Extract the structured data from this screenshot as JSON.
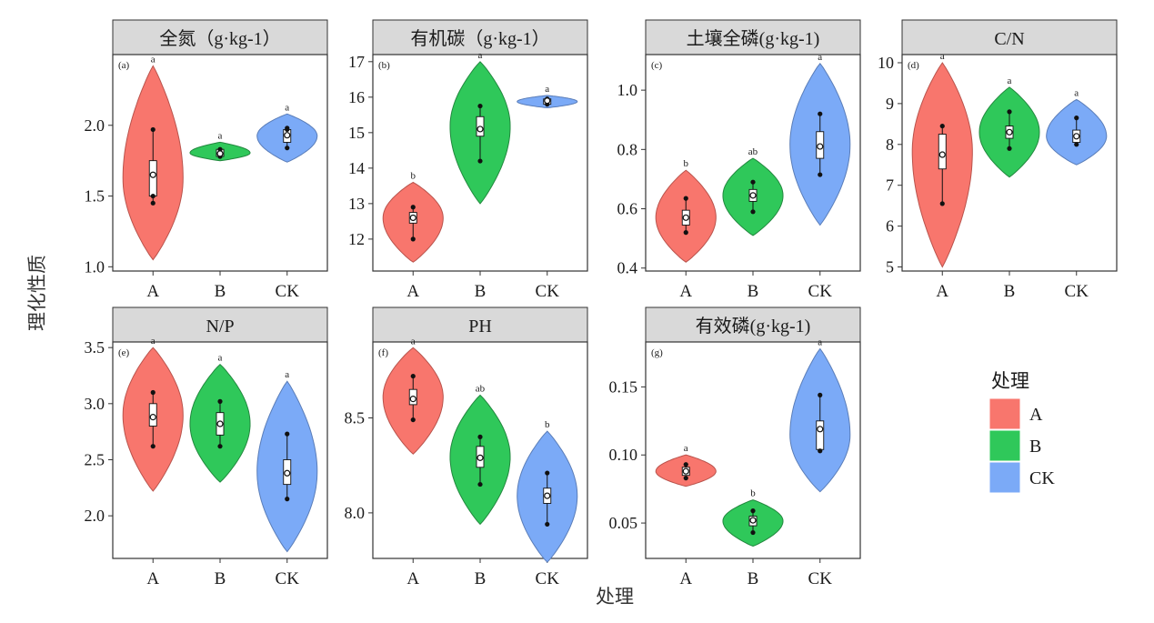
{
  "xlabel": "处理",
  "ylabel": "理化性质",
  "legend": {
    "title": "处理",
    "placement": "right",
    "items": [
      {
        "label": "A",
        "color": "#F8766D"
      },
      {
        "label": "B",
        "color": "#2FC85A"
      },
      {
        "label": "CK",
        "color": "#7BAAF7"
      }
    ]
  },
  "chart_data": [
    {
      "type": "violin",
      "panel_tag": "(a)",
      "strip_title": "全氮（g·kg-1）",
      "categories": [
        "A",
        "B",
        "CK"
      ],
      "yticks": [
        1.0,
        1.5,
        2.0
      ],
      "ylim": [
        0.97,
        2.5
      ],
      "series": [
        {
          "name": "A",
          "median": 1.65,
          "q1": 1.5,
          "q3": 1.75,
          "whisker_low": 1.45,
          "whisker_high": 1.97,
          "points": [
            1.45,
            1.5,
            1.97
          ],
          "vmin": 1.05,
          "vmax": 2.42,
          "letter": "a"
        },
        {
          "name": "B",
          "median": 1.8,
          "q1": 1.78,
          "q3": 1.83,
          "whisker_low": 1.77,
          "whisker_high": 1.84,
          "points": [
            1.78,
            1.83
          ],
          "vmin": 1.75,
          "vmax": 1.88,
          "letter": "a"
        },
        {
          "name": "CK",
          "median": 1.93,
          "q1": 1.88,
          "q3": 1.97,
          "whisker_low": 1.84,
          "whisker_high": 1.98,
          "points": [
            1.84,
            1.97,
            1.98
          ],
          "vmin": 1.74,
          "vmax": 2.08,
          "letter": "a"
        }
      ]
    },
    {
      "type": "violin",
      "panel_tag": "(b)",
      "strip_title": "有机碳（g·kg-1）",
      "categories": [
        "A",
        "B",
        "CK"
      ],
      "yticks": [
        12,
        13,
        14,
        15,
        16,
        17
      ],
      "ylim": [
        11.1,
        17.2
      ],
      "series": [
        {
          "name": "A",
          "median": 12.6,
          "q1": 12.45,
          "q3": 12.75,
          "whisker_low": 12.0,
          "whisker_high": 12.9,
          "points": [
            12.0,
            12.9
          ],
          "vmin": 11.35,
          "vmax": 13.6,
          "letter": "b"
        },
        {
          "name": "B",
          "median": 15.1,
          "q1": 14.9,
          "q3": 15.45,
          "whisker_low": 14.2,
          "whisker_high": 15.75,
          "points": [
            14.2,
            15.75
          ],
          "vmin": 13.0,
          "vmax": 17.0,
          "letter": "a"
        },
        {
          "name": "CK",
          "median": 15.9,
          "q1": 15.8,
          "q3": 15.95,
          "whisker_low": 15.8,
          "whisker_high": 15.95,
          "points": [
            15.8,
            15.95
          ],
          "vmin": 15.7,
          "vmax": 16.05,
          "letter": "a"
        }
      ]
    },
    {
      "type": "violin",
      "panel_tag": "(c)",
      "strip_title": "土壤全磷(g·kg-1)",
      "categories": [
        "A",
        "B",
        "CK"
      ],
      "yticks": [
        0.4,
        0.6,
        0.8,
        1.0
      ],
      "ylim": [
        0.39,
        1.12
      ],
      "series": [
        {
          "name": "A",
          "median": 0.57,
          "q1": 0.545,
          "q3": 0.595,
          "whisker_low": 0.52,
          "whisker_high": 0.635,
          "points": [
            0.52,
            0.635
          ],
          "vmin": 0.42,
          "vmax": 0.73,
          "letter": "b"
        },
        {
          "name": "B",
          "median": 0.645,
          "q1": 0.625,
          "q3": 0.665,
          "whisker_low": 0.59,
          "whisker_high": 0.69,
          "points": [
            0.59,
            0.69
          ],
          "vmin": 0.51,
          "vmax": 0.77,
          "letter": "ab"
        },
        {
          "name": "CK",
          "median": 0.81,
          "q1": 0.77,
          "q3": 0.86,
          "whisker_low": 0.715,
          "whisker_high": 0.92,
          "points": [
            0.715,
            0.92
          ],
          "vmin": 0.545,
          "vmax": 1.09,
          "letter": "a"
        }
      ]
    },
    {
      "type": "violin",
      "panel_tag": "(d)",
      "strip_title": "C/N",
      "categories": [
        "A",
        "B",
        "CK"
      ],
      "yticks": [
        5,
        6,
        7,
        8,
        9,
        10
      ],
      "ylim": [
        4.9,
        10.2
      ],
      "series": [
        {
          "name": "A",
          "median": 7.75,
          "q1": 7.4,
          "q3": 8.25,
          "whisker_low": 6.55,
          "whisker_high": 8.45,
          "points": [
            6.55,
            8.45
          ],
          "vmin": 5.0,
          "vmax": 10.0,
          "letter": "a"
        },
        {
          "name": "B",
          "median": 8.3,
          "q1": 8.15,
          "q3": 8.45,
          "whisker_low": 7.9,
          "whisker_high": 8.8,
          "points": [
            7.9,
            8.8
          ],
          "vmin": 7.2,
          "vmax": 9.4,
          "letter": "a"
        },
        {
          "name": "CK",
          "median": 8.2,
          "q1": 8.05,
          "q3": 8.35,
          "whisker_low": 8.0,
          "whisker_high": 8.65,
          "points": [
            8.0,
            8.65
          ],
          "vmin": 7.5,
          "vmax": 9.1,
          "letter": "a"
        }
      ]
    },
    {
      "type": "violin",
      "panel_tag": "(e)",
      "strip_title": "N/P",
      "categories": [
        "A",
        "B",
        "CK"
      ],
      "yticks": [
        2.0,
        2.5,
        3.0,
        3.5
      ],
      "ylim": [
        1.62,
        3.55
      ],
      "series": [
        {
          "name": "A",
          "median": 2.88,
          "q1": 2.8,
          "q3": 3.0,
          "whisker_low": 2.62,
          "whisker_high": 3.1,
          "points": [
            2.62,
            3.1
          ],
          "vmin": 2.22,
          "vmax": 3.5,
          "letter": "a"
        },
        {
          "name": "B",
          "median": 2.82,
          "q1": 2.72,
          "q3": 2.92,
          "whisker_low": 2.62,
          "whisker_high": 3.02,
          "points": [
            2.62,
            3.02
          ],
          "vmin": 2.3,
          "vmax": 3.35,
          "letter": "a"
        },
        {
          "name": "CK",
          "median": 2.38,
          "q1": 2.28,
          "q3": 2.5,
          "whisker_low": 2.15,
          "whisker_high": 2.73,
          "points": [
            2.15,
            2.73
          ],
          "vmin": 1.68,
          "vmax": 3.2,
          "letter": "a"
        }
      ]
    },
    {
      "type": "violin",
      "panel_tag": "(f)",
      "strip_title": "PH",
      "categories": [
        "A",
        "B",
        "CK"
      ],
      "yticks": [
        8.0,
        8.5
      ],
      "ylim": [
        7.76,
        8.9
      ],
      "series": [
        {
          "name": "A",
          "median": 8.6,
          "q1": 8.57,
          "q3": 8.65,
          "whisker_low": 8.49,
          "whisker_high": 8.72,
          "points": [
            8.49,
            8.72
          ],
          "vmin": 8.31,
          "vmax": 8.87,
          "letter": "a"
        },
        {
          "name": "B",
          "median": 8.29,
          "q1": 8.24,
          "q3": 8.35,
          "whisker_low": 8.15,
          "whisker_high": 8.4,
          "points": [
            8.15,
            8.4
          ],
          "vmin": 7.94,
          "vmax": 8.62,
          "letter": "ab"
        },
        {
          "name": "CK",
          "median": 8.09,
          "q1": 8.05,
          "q3": 8.13,
          "whisker_low": 7.94,
          "whisker_high": 8.21,
          "points": [
            7.94,
            8.21
          ],
          "vmin": 7.74,
          "vmax": 8.43,
          "letter": "b"
        }
      ]
    },
    {
      "type": "violin",
      "panel_tag": "(g)",
      "strip_title": "有效磷(g·kg-1)",
      "categories": [
        "A",
        "B",
        "CK"
      ],
      "yticks": [
        0.05,
        0.1,
        0.15
      ],
      "ylim": [
        0.024,
        0.183
      ],
      "series": [
        {
          "name": "A",
          "median": 0.088,
          "q1": 0.085,
          "q3": 0.091,
          "whisker_low": 0.083,
          "whisker_high": 0.093,
          "points": [
            0.083,
            0.093
          ],
          "vmin": 0.077,
          "vmax": 0.1,
          "letter": "a"
        },
        {
          "name": "B",
          "median": 0.052,
          "q1": 0.048,
          "q3": 0.055,
          "whisker_low": 0.043,
          "whisker_high": 0.059,
          "points": [
            0.043,
            0.059
          ],
          "vmin": 0.033,
          "vmax": 0.067,
          "letter": "b"
        },
        {
          "name": "CK",
          "median": 0.119,
          "q1": 0.104,
          "q3": 0.125,
          "whisker_low": 0.103,
          "whisker_high": 0.144,
          "points": [
            0.103,
            0.144
          ],
          "vmin": 0.073,
          "vmax": 0.178,
          "letter": "a"
        }
      ]
    }
  ]
}
